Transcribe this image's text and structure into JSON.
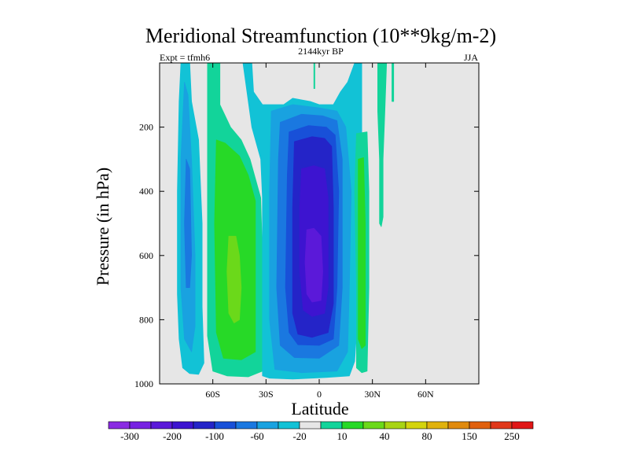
{
  "chart_data": {
    "type": "heatmap",
    "title": "Meridional Streamfunction (10**9kg/m-2)",
    "subtitle_left": "Expt = tfmh6",
    "subtitle_center": "2144kyr BP",
    "subtitle_right": "JJA",
    "xlabel": "Latitude",
    "ylabel": "Pressure (in hPa)",
    "xlim": [
      -90,
      90
    ],
    "ylim": [
      1000,
      0
    ],
    "x_ticks": [
      {
        "value": -60,
        "label": "60S"
      },
      {
        "value": -30,
        "label": "30S"
      },
      {
        "value": 0,
        "label": "0"
      },
      {
        "value": 30,
        "label": "30N"
      },
      {
        "value": 60,
        "label": "60N"
      }
    ],
    "y_ticks": [
      {
        "value": 200,
        "label": "200"
      },
      {
        "value": 400,
        "label": "400"
      },
      {
        "value": 600,
        "label": "600"
      },
      {
        "value": 800,
        "label": "800"
      },
      {
        "value": 1000,
        "label": "1000"
      }
    ],
    "background_color": "#e6e6e6",
    "colorbar": {
      "colors": [
        "#8a2be2",
        "#7722e2",
        "#5b19d9",
        "#3d14d0",
        "#2424c8",
        "#1850d8",
        "#1a78e0",
        "#19a2e0",
        "#12c2d6",
        "#e6e6e6",
        "#12d49a",
        "#27d927",
        "#6bd91a",
        "#a8d414",
        "#d4d40d",
        "#e0b20d",
        "#e08a0d",
        "#e0600d",
        "#e0381a",
        "#e01616"
      ],
      "labels": [
        {
          "after_index": 0,
          "text": "-300"
        },
        {
          "after_index": 2,
          "text": "-200"
        },
        {
          "after_index": 4,
          "text": "-100"
        },
        {
          "after_index": 6,
          "text": "-60"
        },
        {
          "after_index": 8,
          "text": "-20"
        },
        {
          "after_index": 10,
          "text": "10"
        },
        {
          "after_index": 12,
          "text": "40"
        },
        {
          "after_index": 14,
          "text": "80"
        },
        {
          "after_index": 16,
          "text": "150"
        },
        {
          "after_index": 18,
          "text": "250"
        }
      ]
    },
    "contours": [
      {
        "name": "sh-outer-cell",
        "level": -10,
        "color": "#12c2d6",
        "points": [
          [
            -78,
            0
          ],
          [
            -73,
            0
          ],
          [
            -72,
            120
          ],
          [
            -68,
            240
          ],
          [
            -66,
            500
          ],
          [
            -66,
            760
          ],
          [
            -65,
            935
          ],
          [
            -68,
            970
          ],
          [
            -73,
            968
          ],
          [
            -77,
            950
          ],
          [
            -79,
            860
          ],
          [
            -80,
            720
          ],
          [
            -80,
            400
          ],
          [
            -79,
            120
          ]
        ]
      },
      {
        "name": "sh-outer-cell-inner",
        "level": -20,
        "color": "#19a2e0",
        "points": [
          [
            -76,
            60
          ],
          [
            -74,
            100
          ],
          [
            -72,
            300
          ],
          [
            -70,
            600
          ],
          [
            -70,
            820
          ],
          [
            -72,
            900
          ],
          [
            -76,
            860
          ],
          [
            -78,
            700
          ],
          [
            -78,
            300
          ]
        ]
      },
      {
        "name": "sh-outer-cell-core",
        "level": -60,
        "color": "#1a78e0",
        "points": [
          [
            -75,
            300
          ],
          [
            -73,
            330
          ],
          [
            -72,
            600
          ],
          [
            -73,
            700
          ],
          [
            -75,
            700
          ],
          [
            -76,
            500
          ]
        ]
      },
      {
        "name": "positive-cell-outer",
        "level": 10,
        "color": "#12d49a",
        "points": [
          [
            -63,
            0
          ],
          [
            -56,
            0
          ],
          [
            -56,
            130
          ],
          [
            -50,
            200
          ],
          [
            -44,
            240
          ],
          [
            -39,
            300
          ],
          [
            -33,
            420
          ],
          [
            -32,
            600
          ],
          [
            -32,
            960
          ],
          [
            -40,
            978
          ],
          [
            -52,
            975
          ],
          [
            -60,
            960
          ],
          [
            -63,
            850
          ],
          [
            -63,
            400
          ]
        ]
      },
      {
        "name": "positive-cell",
        "level": 40,
        "color": "#27d927",
        "points": [
          [
            -58,
            240
          ],
          [
            -53,
            250
          ],
          [
            -45,
            290
          ],
          [
            -40,
            350
          ],
          [
            -36,
            430
          ],
          [
            -36,
            600
          ],
          [
            -36,
            900
          ],
          [
            -44,
            925
          ],
          [
            -54,
            920
          ],
          [
            -58,
            840
          ],
          [
            -59,
            500
          ]
        ]
      },
      {
        "name": "positive-cell-core",
        "level": 80,
        "color": "#6bd91a",
        "points": [
          [
            -51,
            540
          ],
          [
            -47,
            540
          ],
          [
            -45,
            600
          ],
          [
            -44,
            700
          ],
          [
            -45,
            800
          ],
          [
            -48,
            810
          ],
          [
            -51,
            780
          ],
          [
            -52,
            650
          ]
        ]
      },
      {
        "name": "hadley-cell-outer",
        "level": -10,
        "color": "#12c2d6",
        "points": [
          [
            -43,
            0
          ],
          [
            -38,
            0
          ],
          [
            -37,
            90
          ],
          [
            -32,
            130
          ],
          [
            -20,
            130
          ],
          [
            -15,
            110
          ],
          [
            -5,
            120
          ],
          [
            0,
            130
          ],
          [
            8,
            130
          ],
          [
            12,
            90
          ],
          [
            16,
            60
          ],
          [
            20,
            0
          ],
          [
            24,
            0
          ],
          [
            24,
            480
          ],
          [
            22,
            760
          ],
          [
            20,
            930
          ],
          [
            17,
            975
          ],
          [
            4,
            980
          ],
          [
            -15,
            985
          ],
          [
            -28,
            982
          ],
          [
            -32,
            975
          ],
          [
            -32,
            850
          ],
          [
            -32,
            420
          ],
          [
            -33,
            300
          ],
          [
            -38,
            200
          ]
        ]
      },
      {
        "name": "hadley-cell",
        "level": -20,
        "color": "#19a2e0",
        "points": [
          [
            -27,
            150
          ],
          [
            -15,
            130
          ],
          [
            0,
            140
          ],
          [
            10,
            150
          ],
          [
            15,
            200
          ],
          [
            18,
            400
          ],
          [
            17,
            700
          ],
          [
            16,
            900
          ],
          [
            10,
            960
          ],
          [
            -10,
            965
          ],
          [
            -25,
            955
          ],
          [
            -28,
            800
          ],
          [
            -28,
            400
          ]
        ]
      },
      {
        "name": "hadley-cell-60",
        "level": -60,
        "color": "#1a78e0",
        "points": [
          [
            -22,
            185
          ],
          [
            -10,
            160
          ],
          [
            2,
            165
          ],
          [
            10,
            180
          ],
          [
            13,
            300
          ],
          [
            13,
            700
          ],
          [
            11,
            880
          ],
          [
            0,
            920
          ],
          [
            -14,
            918
          ],
          [
            -22,
            880
          ],
          [
            -24,
            700
          ],
          [
            -23,
            300
          ]
        ]
      },
      {
        "name": "hadley-cell-100",
        "level": -100,
        "color": "#1850d8",
        "points": [
          [
            -17,
            215
          ],
          [
            -6,
            195
          ],
          [
            4,
            200
          ],
          [
            9,
            225
          ],
          [
            11,
            400
          ],
          [
            10,
            700
          ],
          [
            8,
            860
          ],
          [
            0,
            880
          ],
          [
            -12,
            878
          ],
          [
            -17,
            840
          ],
          [
            -19,
            700
          ],
          [
            -18,
            350
          ]
        ]
      },
      {
        "name": "hadley-cell-150",
        "level": -150,
        "color": "#2424c8",
        "points": [
          [
            -14,
            245
          ],
          [
            -4,
            230
          ],
          [
            3,
            235
          ],
          [
            7,
            260
          ],
          [
            8,
            450
          ],
          [
            8,
            750
          ],
          [
            5,
            840
          ],
          [
            -4,
            855
          ],
          [
            -12,
            845
          ],
          [
            -15,
            780
          ],
          [
            -15,
            450
          ]
        ]
      },
      {
        "name": "hadley-cell-200",
        "level": -200,
        "color": "#3d14d0",
        "points": [
          [
            -10,
            330
          ],
          [
            -3,
            320
          ],
          [
            3,
            330
          ],
          [
            5,
            420
          ],
          [
            5,
            700
          ],
          [
            3,
            780
          ],
          [
            -4,
            790
          ],
          [
            -9,
            770
          ],
          [
            -11,
            650
          ],
          [
            -11,
            450
          ]
        ]
      },
      {
        "name": "hadley-cell-core",
        "level": -250,
        "color": "#5b19d9",
        "points": [
          [
            -7,
            520
          ],
          [
            -3,
            515
          ],
          [
            1,
            540
          ],
          [
            2,
            650
          ],
          [
            1,
            740
          ],
          [
            -4,
            745
          ],
          [
            -7,
            720
          ],
          [
            -8,
            620
          ]
        ]
      },
      {
        "name": "positive-filament",
        "level": 10,
        "color": "#12d49a",
        "points": [
          [
            21,
            220
          ],
          [
            27,
            215
          ],
          [
            28,
            400
          ],
          [
            28,
            700
          ],
          [
            27,
            960
          ],
          [
            24,
            965
          ],
          [
            21,
            950
          ],
          [
            21,
            700
          ],
          [
            20,
            400
          ]
        ]
      },
      {
        "name": "positive-filament-core",
        "level": 40,
        "color": "#27d927",
        "points": [
          [
            22,
            300
          ],
          [
            25,
            295
          ],
          [
            26,
            500
          ],
          [
            26,
            880
          ],
          [
            24,
            890
          ],
          [
            22,
            860
          ],
          [
            22,
            500
          ]
        ]
      },
      {
        "name": "nh-upper-filament",
        "level": 10,
        "color": "#12d49a",
        "points": [
          [
            33,
            0
          ],
          [
            38,
            0
          ],
          [
            37,
            150
          ],
          [
            36,
            300
          ],
          [
            36,
            480
          ],
          [
            35,
            510
          ],
          [
            34,
            500
          ],
          [
            34,
            300
          ],
          [
            33,
            150
          ]
        ]
      },
      {
        "name": "nh-upper-filament-2",
        "level": 10,
        "color": "#12d49a",
        "points": [
          [
            41,
            0
          ],
          [
            42,
            0
          ],
          [
            42,
            120
          ],
          [
            41,
            120
          ]
        ]
      },
      {
        "name": "equatorial-top-sliver",
        "level": 10,
        "color": "#12d49a",
        "points": [
          [
            -3,
            0
          ],
          [
            -2.5,
            0
          ],
          [
            -2.5,
            80
          ],
          [
            -3,
            80
          ]
        ]
      }
    ]
  }
}
